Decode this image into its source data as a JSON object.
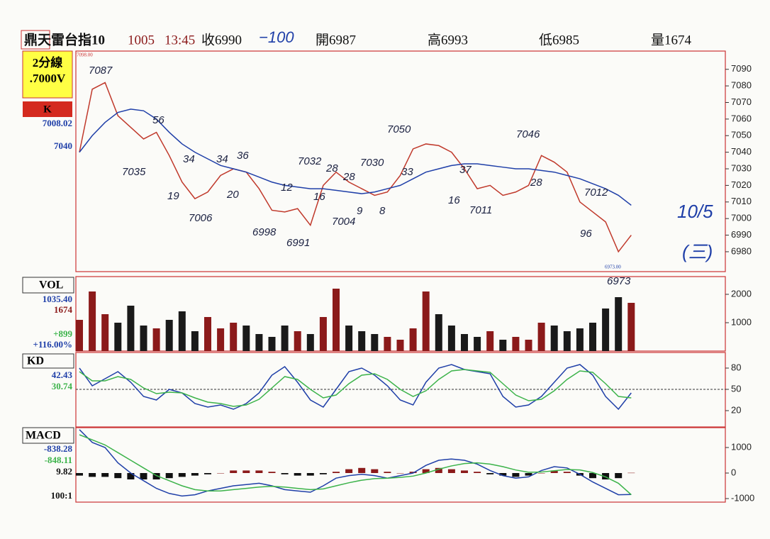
{
  "header": {
    "name": "鼎天雷台指10",
    "date": "1005",
    "time": "13:45",
    "close": "收6990",
    "note": "−100",
    "open": "開6987",
    "high": "高6993",
    "low": "低6985",
    "volume": "量1674"
  },
  "side": {
    "period": "2分線",
    "setting": ".7000V",
    "mode": "K",
    "price_last": "7008.02",
    "price_ref": "7040",
    "top_price": "7098.00",
    "low_price": "6973.00",
    "vol_label": "VOL",
    "vol_ma": "1035.40",
    "vol_last": "1674",
    "vol_change": "+899",
    "vol_pct": "+116.00%",
    "kd_label": "KD",
    "k": "42.43",
    "d": "30.74",
    "macd_label": "MACD",
    "dif": "-838.28",
    "dea": "-848.11",
    "osc": "9.82",
    "scale": "100:1"
  },
  "annotations": [
    "7087",
    "56",
    "7035",
    "34",
    "19",
    "7006",
    "34",
    "20",
    "36",
    "6998",
    "12",
    "6991",
    "7032",
    "16",
    "28",
    "28",
    "7004",
    "9",
    "7030",
    "8",
    "7050",
    "33",
    "16",
    "37",
    "7011",
    "7046",
    "28",
    "7012",
    "96",
    "6973",
    "10/5",
    "(三)"
  ],
  "chart_data": [
    {
      "type": "line",
      "ylim": [
        6968,
        7101
      ],
      "yticks": [
        7090,
        7080,
        7070,
        7060,
        7050,
        7040,
        7030,
        7020,
        7010,
        7000,
        6990,
        6980
      ],
      "series": [
        {
          "color": "#c0392b",
          "values": [
            7040,
            7078,
            7082,
            7062,
            7055,
            7048,
            7052,
            7038,
            7022,
            7012,
            7016,
            7026,
            7030,
            7028,
            7018,
            7005,
            7004,
            7006,
            6996,
            7020,
            7028,
            7022,
            7018,
            7014,
            7016,
            7026,
            7042,
            7045,
            7044,
            7040,
            7030,
            7018,
            7020,
            7014,
            7016,
            7020,
            7038,
            7034,
            7028,
            7010,
            7004,
            6998,
            6980,
            6990
          ]
        },
        {
          "color": "#1f3fa8",
          "values": [
            7040,
            7050,
            7058,
            7064,
            7066,
            7065,
            7060,
            7052,
            7045,
            7040,
            7036,
            7032,
            7030,
            7028,
            7025,
            7022,
            7020,
            7019,
            7018,
            7018,
            7017,
            7016,
            7015,
            7016,
            7018,
            7020,
            7024,
            7028,
            7030,
            7032,
            7033,
            7033,
            7032,
            7031,
            7030,
            7030,
            7029,
            7028,
            7026,
            7024,
            7021,
            7018,
            7014,
            7008
          ]
        }
      ]
    },
    {
      "type": "bar",
      "ylim": [
        0,
        2625
      ],
      "yticks": [
        1000,
        2000
      ],
      "colors": [
        "#8b1a1a",
        "#1a1a1a"
      ],
      "values": [
        1100,
        2100,
        1300,
        1000,
        1600,
        900,
        800,
        1100,
        1400,
        700,
        1200,
        800,
        1000,
        900,
        600,
        500,
        900,
        700,
        600,
        1200,
        2200,
        900,
        700,
        600,
        500,
        400,
        800,
        2100,
        1300,
        900,
        600,
        500,
        700,
        400,
        500,
        400,
        1000,
        900,
        700,
        800,
        1000,
        1500,
        1900,
        1700
      ]
    },
    {
      "type": "line",
      "ylim": [
        -3,
        102
      ],
      "yticks": [
        20,
        50,
        80
      ],
      "reference": 50,
      "series": [
        {
          "color": "#1f3fa8",
          "values": [
            80,
            55,
            65,
            75,
            60,
            40,
            35,
            50,
            45,
            30,
            25,
            28,
            22,
            30,
            45,
            70,
            82,
            60,
            35,
            25,
            50,
            75,
            80,
            70,
            55,
            35,
            28,
            60,
            80,
            85,
            78,
            75,
            72,
            40,
            25,
            28,
            40,
            60,
            80,
            85,
            70,
            40,
            22,
            45
          ]
        },
        {
          "color": "#3cb34a",
          "values": [
            75,
            62,
            62,
            68,
            64,
            52,
            44,
            46,
            45,
            38,
            32,
            30,
            26,
            28,
            36,
            52,
            68,
            64,
            50,
            38,
            42,
            58,
            70,
            72,
            64,
            50,
            40,
            48,
            64,
            76,
            78,
            76,
            74,
            58,
            42,
            34,
            36,
            48,
            64,
            76,
            74,
            58,
            40,
            38
          ]
        }
      ]
    },
    {
      "type": "line",
      "ylim": [
        -1139,
        1778
      ],
      "yticks": [
        1000,
        0,
        -1000
      ],
      "series": [
        {
          "type": "bar",
          "color": "#8b1a1a",
          "negative_color": "#111111",
          "values": [
            -100,
            -150,
            -150,
            -200,
            -250,
            -250,
            -250,
            -200,
            -150,
            -100,
            -50,
            0,
            100,
            100,
            100,
            50,
            -50,
            -100,
            -100,
            -50,
            50,
            150,
            200,
            150,
            50,
            0,
            50,
            150,
            200,
            150,
            100,
            50,
            -50,
            -100,
            -150,
            -100,
            0,
            100,
            50,
            -100,
            -200,
            -250,
            -200,
            10
          ]
        },
        {
          "color": "#1f3fa8",
          "values": [
            1700,
            1200,
            1000,
            400,
            0,
            -300,
            -600,
            -800,
            -900,
            -850,
            -700,
            -600,
            -500,
            -450,
            -400,
            -500,
            -650,
            -700,
            -750,
            -500,
            -200,
            -100,
            -50,
            -100,
            -200,
            -100,
            0,
            300,
            500,
            550,
            500,
            350,
            100,
            -100,
            -200,
            -150,
            100,
            250,
            200,
            -50,
            -350,
            -600,
            -850,
            -840
          ]
        },
        {
          "color": "#3cb34a",
          "values": [
            1500,
            1300,
            1100,
            800,
            500,
            200,
            -100,
            -300,
            -500,
            -650,
            -700,
            -700,
            -650,
            -600,
            -550,
            -520,
            -550,
            -600,
            -650,
            -620,
            -500,
            -380,
            -280,
            -220,
            -200,
            -170,
            -120,
            0,
            150,
            280,
            370,
            400,
            350,
            250,
            120,
            30,
            40,
            90,
            140,
            120,
            20,
            -150,
            -400,
            -848
          ]
        }
      ]
    }
  ]
}
